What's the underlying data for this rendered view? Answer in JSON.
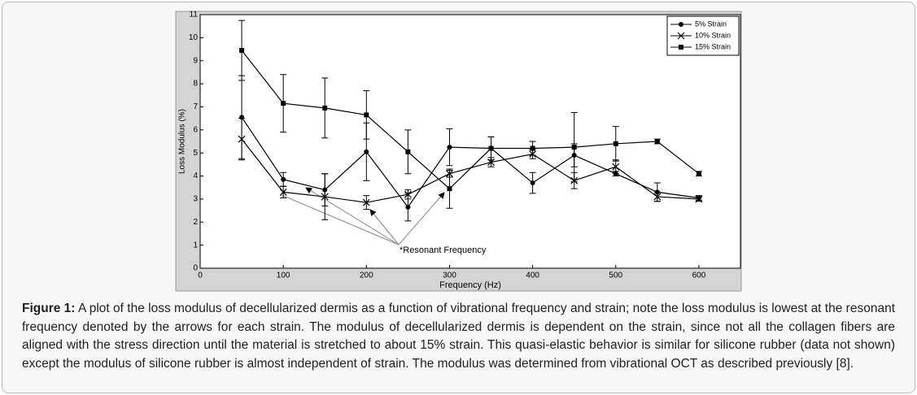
{
  "chart_data": {
    "type": "line",
    "xlabel": "Frequency (Hz)",
    "ylabel": "Loss Modulus (%)",
    "xlim": [
      0,
      650
    ],
    "ylim": [
      0,
      11
    ],
    "xticks": [
      0,
      100,
      200,
      300,
      400,
      500,
      600
    ],
    "yticks": [
      0,
      1,
      2,
      3,
      4,
      5,
      6,
      7,
      8,
      9,
      10,
      11
    ],
    "legend": "upper right",
    "x": [
      50,
      100,
      150,
      200,
      250,
      300,
      350,
      400,
      450,
      500,
      550,
      600
    ],
    "series": [
      {
        "name": "5% Strain",
        "color": "#000000",
        "marker": "circle",
        "values": [
          6.55,
          3.85,
          3.4,
          5.05,
          2.65,
          5.25,
          5.2,
          3.7,
          4.9,
          4.1,
          3.3,
          3.05
        ],
        "errors": [
          1.8,
          0.3,
          0.7,
          1.25,
          0.6,
          0.8,
          0.5,
          0.45,
          0.5,
          0.1,
          0.4,
          0.1
        ]
      },
      {
        "name": "10% Strain",
        "color": "#000000",
        "marker": "x",
        "values": [
          5.6,
          3.3,
          3.1,
          2.85,
          3.2,
          4.1,
          4.6,
          4.95,
          3.8,
          4.4,
          3.1,
          3.0
        ],
        "errors": [
          0.9,
          0.25,
          1.0,
          0.3,
          0.2,
          0.15,
          0.2,
          0.2,
          0.35,
          0.3,
          0.2,
          0.1
        ]
      },
      {
        "name": "15% Strain",
        "color": "#000000",
        "marker": "square",
        "values": [
          9.45,
          7.15,
          6.95,
          6.65,
          5.05,
          3.45,
          5.2,
          5.2,
          5.25,
          5.4,
          5.5,
          4.1
        ],
        "errors": [
          1.3,
          1.25,
          1.3,
          1.05,
          0.95,
          0.85,
          0.5,
          0.3,
          1.5,
          0.75,
          0.1,
          0.1
        ]
      }
    ],
    "annotation": "*Resonant Frequency"
  },
  "caption": {
    "label": "Figure 1:",
    "text": "A plot of the loss modulus of decellularized dermis as a function of vibrational frequency and strain; note the loss modulus is lowest at the resonant frequency denoted by the arrows for each strain. The modulus of decellularized dermis is dependent on the strain, since not all the collagen fibers are aligned with the stress direction until the material is stretched to about 15% strain. This quasi-elastic behavior is similar for silicone rubber (data not shown) except the modulus of silicone rubber is almost independent of strain. The modulus was determined from vibrational OCT as described previously [8]."
  }
}
